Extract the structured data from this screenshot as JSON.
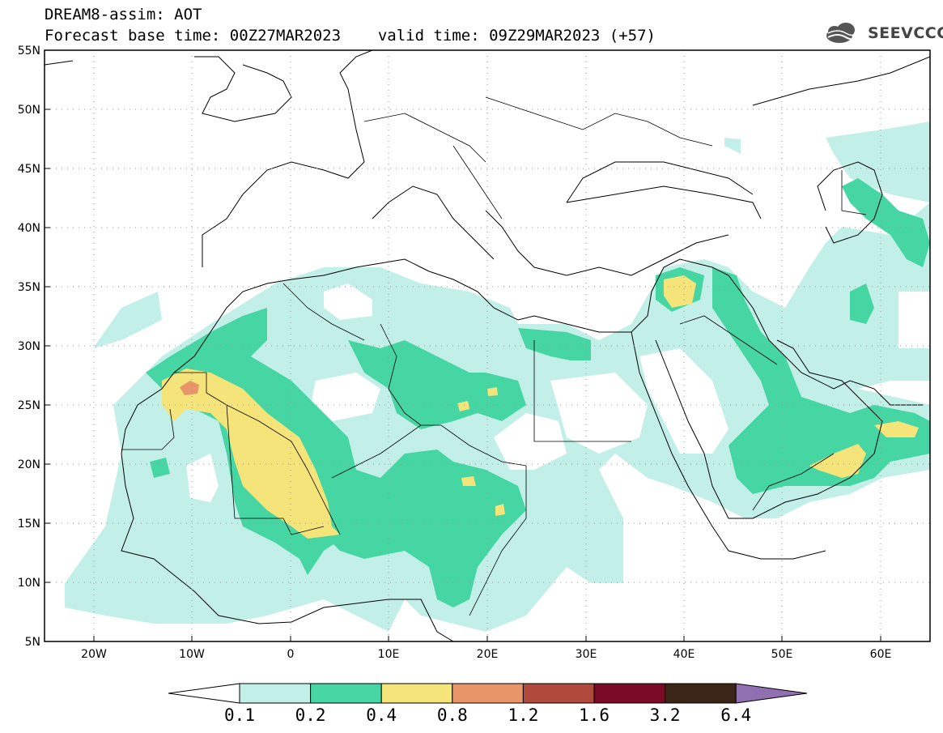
{
  "header": {
    "title": "DREAM8-assim: AOT",
    "base_time": "Forecast base time: 00Z27MAR2023",
    "valid_time": "valid time: 09Z29MAR2023 (+57)",
    "logo_text": "SEEVCCC"
  },
  "axes": {
    "lat_labels": [
      "55N",
      "50N",
      "45N",
      "40N",
      "35N",
      "30N",
      "25N",
      "20N",
      "15N",
      "10N",
      "5N"
    ],
    "lon_labels": [
      "20W",
      "10W",
      "0",
      "10E",
      "20E",
      "30E",
      "40E",
      "50E",
      "60E"
    ]
  },
  "colorbar": {
    "levels": [
      "0.1",
      "0.2",
      "0.4",
      "0.8",
      "1.2",
      "1.6",
      "3.2",
      "6.4"
    ],
    "colors": [
      "#ffffff",
      "#c2f0e8",
      "#46d6a4",
      "#f5e47a",
      "#e8956a",
      "#b04a3c",
      "#7a0a26",
      "#3b2516",
      "#9070b0"
    ]
  },
  "map": {
    "lon_range": [
      -25,
      65
    ],
    "lat_range": [
      5,
      55
    ],
    "field": "AOT"
  }
}
